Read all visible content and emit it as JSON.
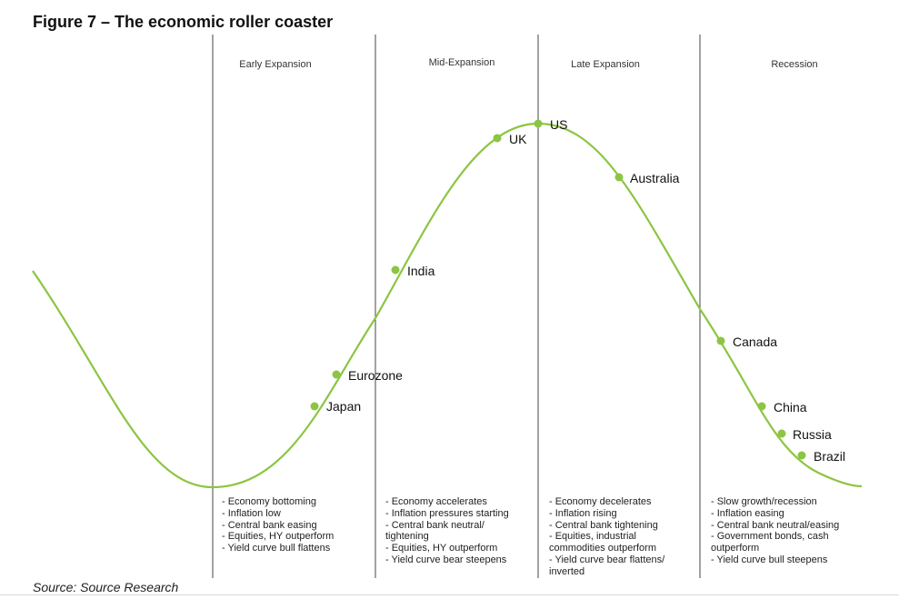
{
  "figure": {
    "title": "Figure 7 – The economic roller coaster",
    "source": "Source: Source Research"
  },
  "colors": {
    "curve": "#8cc542",
    "marker": "#8cc542",
    "divider": "#444444"
  },
  "phases": [
    {
      "name": "Early Expansion",
      "notes": [
        "- Economy bottoming",
        "- Inflation low",
        "- Central bank easing",
        "- Equities, HY outperform",
        "- Yield curve bull flattens"
      ]
    },
    {
      "name": "Mid-Expansion",
      "notes": [
        "- Economy accelerates",
        "- Inflation pressures starting",
        "- Central bank neutral/",
        "tightening",
        "- Equities, HY outperform",
        "- Yield curve bear steepens"
      ]
    },
    {
      "name": "Late Expansion",
      "notes": [
        "- Economy decelerates",
        "- Inflation rising",
        "- Central bank tightening",
        "- Equities, industrial",
        "commodities outperform",
        "- Yield curve bear flattens/",
        "inverted"
      ]
    },
    {
      "name": "Recession",
      "notes": [
        "- Slow growth/recession",
        "- Inflation easing",
        "- Central bank neutral/easing",
        "- Government bonds, cash",
        "outperform",
        "- Yield curve bull steepens"
      ]
    }
  ],
  "countries": [
    {
      "name": "Japan"
    },
    {
      "name": "Eurozone"
    },
    {
      "name": "India"
    },
    {
      "name": "UK"
    },
    {
      "name": "US"
    },
    {
      "name": "Australia"
    },
    {
      "name": "Canada"
    },
    {
      "name": "China"
    },
    {
      "name": "Russia"
    },
    {
      "name": "Brazil"
    }
  ]
}
